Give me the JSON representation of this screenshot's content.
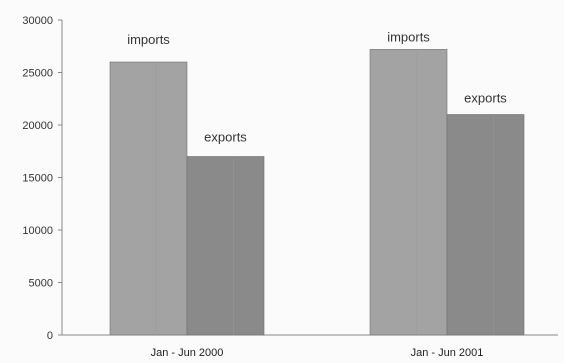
{
  "chart_data": {
    "type": "bar",
    "categories": [
      "Jan - Jun 2000",
      "Jan - Jun 2001"
    ],
    "series": [
      {
        "name": "imports",
        "values": [
          26000,
          27200
        ],
        "color": "#a3a3a3"
      },
      {
        "name": "exports",
        "values": [
          17000,
          21000
        ],
        "color": "#8a8a8a"
      }
    ],
    "y_ticks": [
      "30000",
      "25000",
      "20000",
      "15000",
      "10000",
      "5000",
      "0"
    ],
    "ylim": [
      0,
      30000
    ],
    "grid": false,
    "legend": "none",
    "title": "",
    "xlabel": "",
    "ylabel": ""
  }
}
